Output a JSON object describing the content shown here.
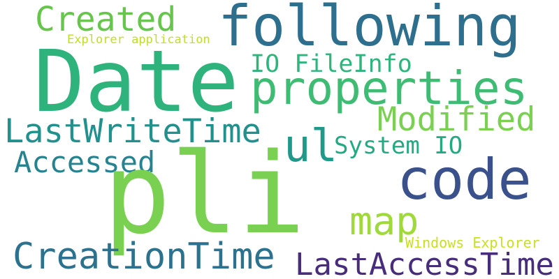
{
  "cloud": {
    "words": {
      "following": "following",
      "created": "Created",
      "explorer_application": "Explorer application",
      "date": "Date",
      "io_fileinfo": "IO FileInfo",
      "properties": "properties",
      "modified": "Modified",
      "lastwritetime": "LastWriteTime",
      "system_io": "System IO",
      "ul": "ul",
      "accessed": "Accessed",
      "code": "code",
      "pli": "pli",
      "map": "map",
      "windows_explorer": "Windows Explorer",
      "creationtime": "CreationTime",
      "lastaccesstime": "LastAccessTime"
    },
    "colors": {
      "background": "#ffffff",
      "following": "#2e6f8e",
      "created": "#66c64c",
      "explorer_application": "#bedf26",
      "date": "#2eb37c",
      "io_fileinfo": "#2fb47c",
      "properties": "#3fbc73",
      "modified": "#7ad151",
      "lastwritetime": "#22908c",
      "system_io": "#24aa83",
      "ul": "#1f9a8a",
      "accessed": "#26838f",
      "code": "#3b518b",
      "pli": "#7ad151",
      "map": "#9fda3a",
      "windows_explorer": "#c8e020",
      "creationtime": "#2c728e",
      "lastaccesstime": "#472d7b"
    }
  }
}
